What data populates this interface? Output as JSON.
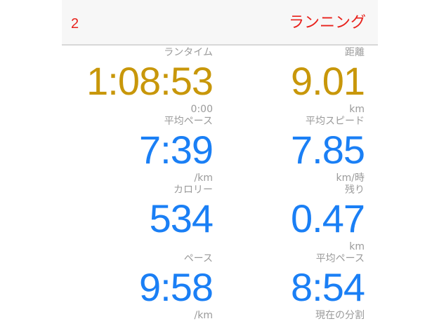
{
  "header": {
    "left": "2",
    "title": "ランニング"
  },
  "colors": {
    "accent": "#e8221c",
    "primary_value": "#c8970a",
    "secondary_value": "#1a7ff5"
  },
  "metrics": [
    {
      "label": "ランタイム",
      "value": "1:08:53",
      "unit": "0:00"
    },
    {
      "label": "距離",
      "value": "9.01",
      "unit": "km"
    },
    {
      "label": "平均ペース",
      "value": "7:39",
      "unit": "/km"
    },
    {
      "label": "平均スピード",
      "value": "7.85",
      "unit": "km/時"
    },
    {
      "label": "カロリー",
      "value": "534",
      "unit": ""
    },
    {
      "label": "残り",
      "value": "0.47",
      "unit": "km"
    },
    {
      "label": "ペース",
      "value": "9:58",
      "unit": "/km"
    },
    {
      "label": "平均ペース",
      "value": "8:54",
      "unit": "現在の分割"
    }
  ]
}
